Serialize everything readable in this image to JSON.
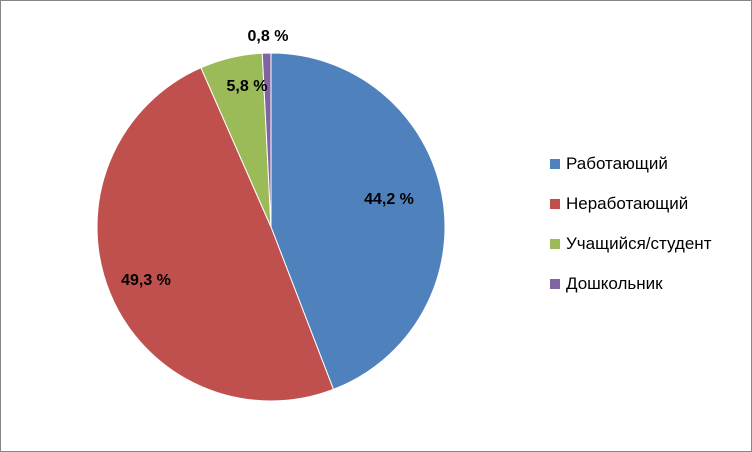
{
  "chart_data": {
    "type": "pie",
    "categories": [
      "Работающий",
      "Неработающий",
      "Учащийся/студент",
      "Дошкольник"
    ],
    "values": [
      44.2,
      49.3,
      5.8,
      0.8
    ],
    "labels": [
      "44,2 %",
      "49,3 %",
      "5,8 %",
      "0,8 %"
    ],
    "colors": [
      "#4F81BD",
      "#C0504D",
      "#9BBB59",
      "#8064A2"
    ],
    "title": "",
    "legend_position": "right",
    "start_angle": "top, clockwise"
  }
}
